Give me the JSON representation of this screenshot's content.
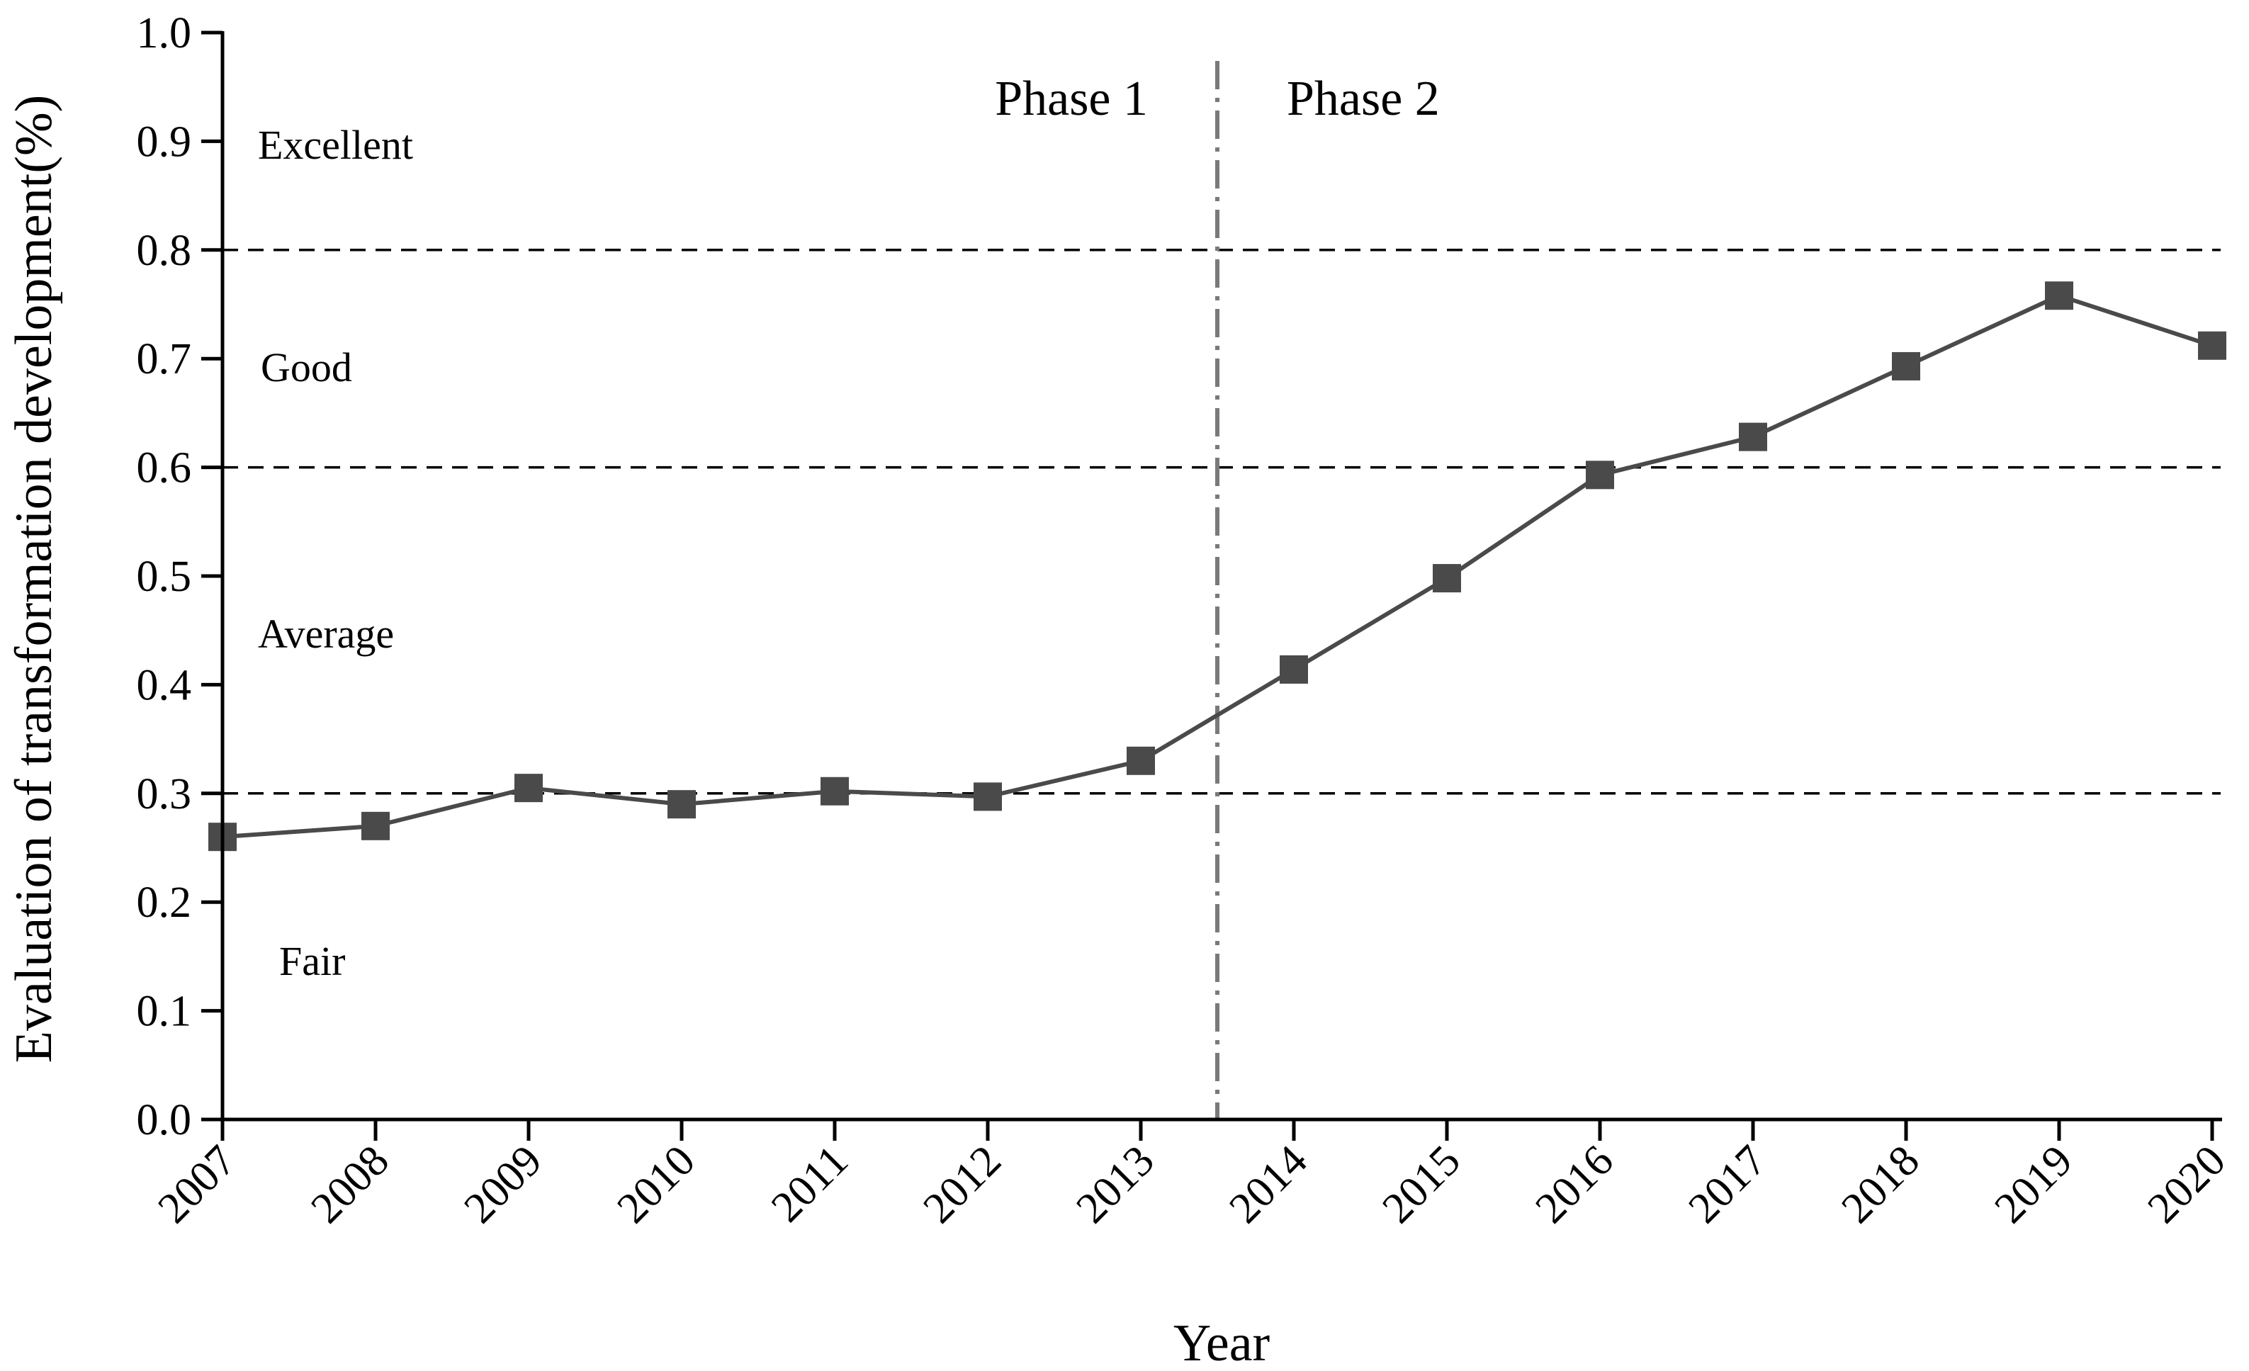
{
  "chart_data": {
    "type": "line",
    "xlabel": "Year",
    "ylabel": "Evaluation of transformation development(%)",
    "ylim": [
      0.0,
      1.0
    ],
    "yticks": [
      "0.0",
      "0.1",
      "0.2",
      "0.3",
      "0.4",
      "0.5",
      "0.6",
      "0.7",
      "0.8",
      "0.9",
      "1.0"
    ],
    "categories": [
      "2007",
      "2008",
      "2009",
      "2010",
      "2011",
      "2012",
      "2013",
      "2014",
      "2015",
      "2016",
      "2017",
      "2018",
      "2019",
      "2020"
    ],
    "series": [
      {
        "values": [
          0.26,
          0.27,
          0.305,
          0.29,
          0.302,
          0.297,
          0.33,
          0.414,
          0.498,
          0.593,
          0.628,
          0.693,
          0.758,
          0.712
        ],
        "color": "#4a4a4a",
        "marker": "square"
      }
    ],
    "reference_lines": [
      0.3,
      0.6,
      0.8
    ],
    "zones": [
      {
        "label": "Excellent",
        "y": 0.9
      },
      {
        "label": "Good",
        "y": 0.7
      },
      {
        "label": "Average",
        "y": 0.45
      },
      {
        "label": "Fair",
        "y": 0.15
      }
    ],
    "phase_divider": {
      "between": [
        "2013",
        "2014"
      ],
      "left_label": "Phase 1",
      "right_label": "Phase 2"
    },
    "grid": false,
    "legend": "none"
  }
}
